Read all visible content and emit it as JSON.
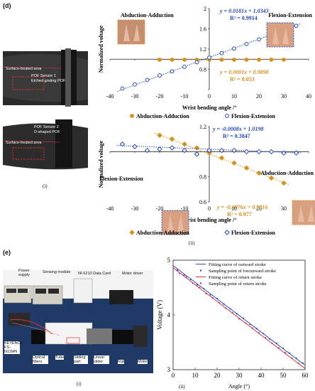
{
  "panel_d": {
    "letter": "(d)",
    "photo_caption": "(i)",
    "charts_caption": "(ii)",
    "sensor1": {
      "area": "Surface-treated area",
      "line1": "POF Sensor 1",
      "line2": "Etched grating POF"
    },
    "sensor2": {
      "line1": "POF Sensor 2",
      "line2": "D-shaped POF",
      "area": "Surface-treated area"
    }
  },
  "panel_e": {
    "letter": "(e)",
    "photo_caption": "(i)",
    "chart_caption": "(ii)",
    "labels": {
      "power_supply": "Power supply",
      "sensing_module": "Sensing module",
      "daq": "NI-6210 Data Card",
      "motor_driver": "Motor driver",
      "keyence": "KEYENCE FS-N11MN",
      "optical_fibers": "Optical fibers",
      "tube": "Tube",
      "sliding_part": "Sliding part",
      "linear_slider": "Linear slider",
      "rail": "Rail",
      "motor": "Motor"
    }
  },
  "chart_data": [
    {
      "type": "scatter",
      "xlabel": "Wrist bending angle /°",
      "ylabel": "Normalized voltage",
      "xlim": [
        -40,
        40
      ],
      "ylim": [
        0.4,
        2.0
      ],
      "xticks": [
        -40,
        -30,
        -20,
        -10,
        0,
        10,
        20,
        30,
        40
      ],
      "yticks": [
        0.4,
        0.8,
        1.2,
        1.6,
        2.0
      ],
      "ytick_labels": [
        "",
        "0.8",
        "1.2",
        "1.6",
        "2"
      ],
      "annotations": {
        "left_title": "Abduction-Adduction",
        "right_title": "Flexion-Extension",
        "blue_eq": "y = 0.0181x + 1.0343",
        "blue_r2": "R² = 0.9914",
        "orange_eq": "y = 0.0001x + 0.9898",
        "orange_r2": "R² = 0.053"
      },
      "legend": [
        "Abduction-Adduction",
        "Flexion-Extension"
      ],
      "series": [
        {
          "name": "Abduction-Adduction",
          "color": "#d4911c",
          "marker": "circle-filled",
          "x": [
            -20,
            -15,
            -10,
            -5,
            0,
            5,
            10,
            15,
            20,
            25,
            30
          ],
          "y": [
            0.99,
            0.99,
            0.99,
            0.99,
            0.99,
            0.99,
            0.99,
            0.99,
            0.99,
            0.99,
            0.99
          ],
          "fit": {
            "slope": 0.0001,
            "intercept": 0.9898
          }
        },
        {
          "name": "Flexion-Extension",
          "color": "#2449b8",
          "marker": "circle-open",
          "x": [
            -35,
            -30,
            -25,
            -20,
            -15,
            -10,
            -5,
            0,
            5,
            10,
            15,
            20,
            25,
            30,
            35
          ],
          "y": [
            0.42,
            0.5,
            0.59,
            0.68,
            0.76,
            0.85,
            0.94,
            1.03,
            1.12,
            1.21,
            1.3,
            1.39,
            1.48,
            1.57,
            1.66
          ],
          "fit": {
            "slope": 0.0181,
            "intercept": 1.0343
          }
        }
      ]
    },
    {
      "type": "scatter",
      "xlabel": "Wrist bending angle /°",
      "ylabel": "Normalized voltage",
      "xlim": [
        -40,
        40
      ],
      "ylim": [
        0.6,
        1.2
      ],
      "xticks": [
        -40,
        -30,
        -20,
        -10,
        0,
        10,
        20,
        30,
        40
      ],
      "yticks": [
        0.6,
        0.8,
        1.0,
        1.2
      ],
      "ytick_labels": [
        "0.6",
        "0.8",
        "",
        "1.2"
      ],
      "annotations": {
        "left_title": "Flexion-Extension",
        "right_title": "Abduction-Adduction",
        "blue_eq": "y = -0.0008x + 1.0198",
        "blue_r2": "R² = 0.3847",
        "orange_eq": "y = -0.0076x + 0.9816",
        "orange_r2": "R² = 0.977"
      },
      "legend": [
        "Abduction-Adduction",
        "Flexion-Extension"
      ],
      "series": [
        {
          "name": "Abduction-Adduction",
          "color": "#d4911c",
          "marker": "diamond-filled",
          "x": [
            -20,
            -15,
            -10,
            -5,
            0,
            5,
            10,
            15,
            20,
            25,
            30
          ],
          "y": [
            1.13,
            1.1,
            1.06,
            1.03,
            0.99,
            0.95,
            0.91,
            0.87,
            0.83,
            0.79,
            0.75
          ],
          "fit": {
            "slope": -0.0076,
            "intercept": 0.9816
          }
        },
        {
          "name": "Flexion-Extension",
          "color": "#2449b8",
          "marker": "diamond-open",
          "x": [
            -35,
            -30,
            -25,
            -20,
            -15,
            -10,
            -5,
            0,
            5,
            10,
            15,
            20,
            25,
            30,
            35
          ],
          "y": [
            1.06,
            1.04,
            1.01,
            1.02,
            1.03,
            1.01,
            0.98,
            1.01,
            1.01,
            1.01,
            1.0,
            1.0,
            1.0,
            0.99,
            0.99
          ],
          "fit": {
            "slope": -0.0008,
            "intercept": 1.0198
          }
        }
      ]
    },
    {
      "type": "line",
      "xlabel": "Angle (°)",
      "ylabel": "Voltage (V)",
      "xlim": [
        0,
        60
      ],
      "ylim": [
        3,
        5
      ],
      "xticks": [
        0,
        10,
        20,
        30,
        40,
        50,
        60
      ],
      "yticks": [
        3,
        4,
        5
      ],
      "legend": [
        "Fitting curve of outward stroke",
        "Sampling point of foroutward stroke",
        "Fitting curve of return stroke",
        "Sampling point of return stroke"
      ],
      "series": [
        {
          "name": "Fitting curve of outward stroke",
          "color": "#2f4fb5",
          "kind": "line",
          "x": [
            0,
            60
          ],
          "y": [
            4.9,
            3.08
          ]
        },
        {
          "name": "Sampling point of foroutward stroke",
          "color": "#2f4fb5",
          "kind": "points",
          "x": [
            2,
            5,
            8,
            11,
            14,
            17,
            20,
            23,
            26,
            29,
            32,
            35,
            38,
            41,
            44,
            47,
            50,
            53,
            56,
            59
          ],
          "y": [
            4.82,
            4.73,
            4.65,
            4.55,
            4.48,
            4.37,
            4.3,
            4.2,
            4.11,
            4.02,
            3.94,
            3.83,
            3.75,
            3.66,
            3.56,
            3.48,
            3.39,
            3.3,
            3.21,
            3.12
          ]
        },
        {
          "name": "Fitting curve of return stroke",
          "color": "#d23a3a",
          "kind": "line",
          "x": [
            0,
            60
          ],
          "y": [
            4.86,
            3.02
          ]
        },
        {
          "name": "Sampling point of return stroke",
          "color": "#c03070",
          "kind": "points",
          "x": [
            3,
            6,
            9,
            12,
            15,
            18,
            21,
            24,
            27,
            30,
            33,
            36,
            39,
            42,
            45,
            48,
            51,
            54,
            57
          ],
          "y": [
            4.76,
            4.69,
            4.58,
            4.5,
            4.39,
            4.31,
            4.22,
            4.12,
            4.04,
            3.93,
            3.85,
            3.76,
            3.67,
            3.58,
            3.48,
            3.4,
            3.31,
            3.21,
            3.12
          ]
        }
      ]
    }
  ]
}
